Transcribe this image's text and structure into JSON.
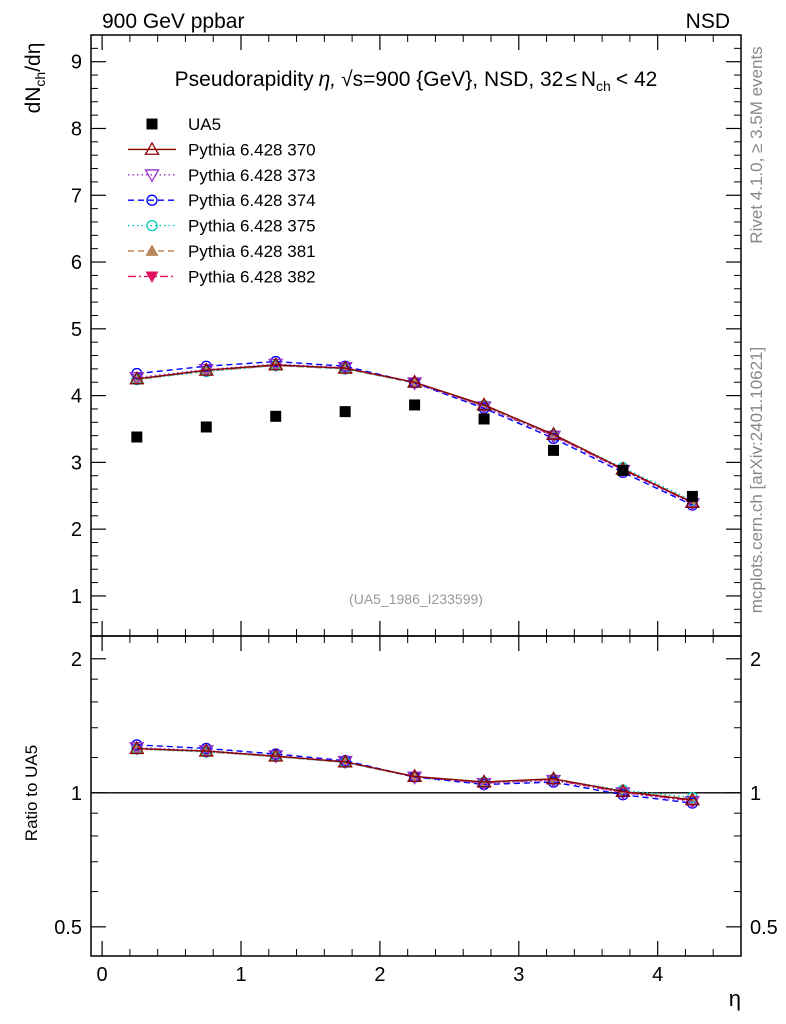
{
  "header": {
    "left": "900 GeV ppbar",
    "right": "NSD"
  },
  "side_labels": {
    "upper": "Rivet 4.1.0, ≥ 3.5M events",
    "lower": "mcplots.cern.ch [arXiv:2401.10621]"
  },
  "colors": {
    "ua5": "#000000",
    "p370": "#8b0000",
    "p373": "#9932cc",
    "p374": "#0000ff",
    "p375": "#00cdb5",
    "p381": "#b8865a",
    "p382": "#e0115f",
    "text_grey": "#888888"
  },
  "chart_data": [
    {
      "type": "scatter",
      "panel": "main",
      "title": "Pseudorapidity η, √s=900 {GeV}, NSD, 32≤ N_ch < 42",
      "title_parts": {
        "prefix": "Pseudorapidity",
        "eta": "η,",
        "sqrt": "√",
        "s_eq": "s=900 {GeV}, NSD, 32",
        "le": "≤",
        "n": "N",
        "ch_sub": "ch",
        "tail": "< 42"
      },
      "xlabel": "η",
      "ylabel": "dN_ch/dη",
      "ylabel_parts": {
        "a": "dN",
        "sub": "ch",
        "b": "/dη"
      },
      "xlim": [
        -0.08,
        4.6
      ],
      "ylim": [
        0.4,
        9.4
      ],
      "yticks": [
        1,
        2,
        3,
        4,
        5,
        6,
        7,
        8,
        9
      ],
      "ytick_labels": [
        "1",
        "2",
        "3",
        "4",
        "5",
        "6",
        "7",
        "8",
        "9"
      ],
      "reference_label": "(UA5_1986_I233599)",
      "x": [
        0.25,
        0.75,
        1.25,
        1.75,
        2.25,
        2.75,
        3.25,
        3.75,
        4.25
      ],
      "series": [
        {
          "name": "UA5",
          "marker": "square",
          "line": "none",
          "color_key": "ua5",
          "values": [
            3.38,
            3.53,
            3.69,
            3.76,
            3.86,
            3.65,
            3.18,
            2.88,
            2.49
          ]
        },
        {
          "name": "Pythia 6.428 370",
          "marker": "triangle-open",
          "line": "solid",
          "color_key": "p370",
          "values": [
            4.25,
            4.38,
            4.46,
            4.41,
            4.2,
            3.86,
            3.42,
            2.9,
            2.4
          ]
        },
        {
          "name": "Pythia 6.428 373",
          "marker": "triangle-down-open",
          "line": "dotted",
          "color_key": "p373",
          "values": [
            4.27,
            4.39,
            4.47,
            4.42,
            4.19,
            3.83,
            3.39,
            2.88,
            2.38
          ]
        },
        {
          "name": "Pythia 6.428 374",
          "marker": "circle-open",
          "line": "dashed",
          "color_key": "p374",
          "values": [
            4.33,
            4.44,
            4.51,
            4.44,
            4.19,
            3.81,
            3.36,
            2.85,
            2.36
          ]
        },
        {
          "name": "Pythia 6.428 375",
          "marker": "circle-open",
          "line": "dotted",
          "color_key": "p375",
          "values": [
            4.24,
            4.36,
            4.45,
            4.4,
            4.19,
            3.85,
            3.41,
            2.92,
            2.43
          ]
        },
        {
          "name": "Pythia 6.428 381",
          "marker": "triangle-filled",
          "line": "dashed",
          "color_key": "p381",
          "values": [
            4.24,
            4.37,
            4.45,
            4.4,
            4.19,
            3.84,
            3.41,
            2.9,
            2.41
          ]
        },
        {
          "name": "Pythia 6.428 382",
          "marker": "triangle-down-filled",
          "line": "dashdot",
          "color_key": "p382",
          "values": [
            4.25,
            4.37,
            4.45,
            4.41,
            4.2,
            3.84,
            3.4,
            2.89,
            2.39
          ]
        }
      ]
    },
    {
      "type": "line",
      "panel": "ratio",
      "ylabel": "Ratio to UA5",
      "xlabel": "η",
      "xlim": [
        -0.08,
        4.6
      ],
      "ylim": [
        0.43,
        2.25
      ],
      "log_y": true,
      "yticks": [
        0.5,
        1,
        2
      ],
      "ytick_labels": [
        "0.5",
        "1",
        "2"
      ],
      "xticks": [
        0,
        1,
        2,
        3,
        4
      ],
      "xtick_labels": [
        "0",
        "1",
        "2",
        "3",
        "4"
      ],
      "x": [
        0.25,
        0.75,
        1.25,
        1.75,
        2.25,
        2.75,
        3.25,
        3.75,
        4.25
      ],
      "series": [
        {
          "name": "Pythia 6.428 370",
          "color_key": "p370",
          "values": [
            1.257,
            1.241,
            1.209,
            1.173,
            1.088,
            1.058,
            1.075,
            1.007,
            0.964
          ]
        },
        {
          "name": "Pythia 6.428 373",
          "color_key": "p373",
          "values": [
            1.263,
            1.244,
            1.211,
            1.176,
            1.085,
            1.049,
            1.066,
            1.0,
            0.956
          ]
        },
        {
          "name": "Pythia 6.428 374",
          "color_key": "p374",
          "values": [
            1.281,
            1.258,
            1.222,
            1.181,
            1.085,
            1.044,
            1.057,
            0.99,
            0.948
          ]
        },
        {
          "name": "Pythia 6.428 375",
          "color_key": "p375",
          "values": [
            1.254,
            1.235,
            1.206,
            1.17,
            1.085,
            1.055,
            1.072,
            1.014,
            0.976
          ]
        },
        {
          "name": "Pythia 6.428 381",
          "color_key": "p381",
          "values": [
            1.254,
            1.238,
            1.206,
            1.17,
            1.085,
            1.052,
            1.072,
            1.007,
            0.968
          ]
        },
        {
          "name": "Pythia 6.428 382",
          "color_key": "p382",
          "values": [
            1.257,
            1.238,
            1.206,
            1.173,
            1.088,
            1.052,
            1.069,
            1.003,
            0.96
          ]
        }
      ]
    }
  ]
}
